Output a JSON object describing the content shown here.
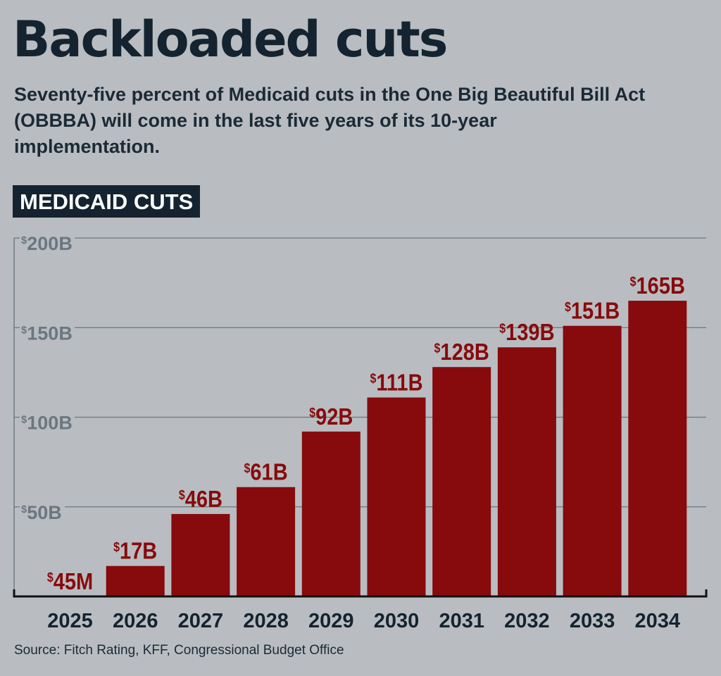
{
  "header": {
    "title": "Backloaded cuts",
    "subtitle": "Seventy-five percent of Medicaid cuts in the One Big Beautiful Bill Act (OBBBA) will come in the last five years of its 10-year implementation.",
    "chart_label": "MEDICAID CUTS"
  },
  "source": "Source: Fitch Rating, KFF, Congressional Budget Office",
  "colors": {
    "bar": "#870a0c",
    "label": "#870a0c",
    "axis_text": "#6b7780",
    "background": "#b9bdc1",
    "title": "#14232f"
  },
  "chart_data": {
    "type": "bar",
    "title": "MEDICAID CUTS",
    "categories": [
      "2025",
      "2026",
      "2027",
      "2028",
      "2029",
      "2030",
      "2031",
      "2032",
      "2033",
      "2034"
    ],
    "values": [
      0.045,
      17,
      46,
      61,
      92,
      111,
      128,
      139,
      151,
      165
    ],
    "value_unit": "billions USD",
    "data_labels": [
      "$45M",
      "$17B",
      "$46B",
      "$61B",
      "$92B",
      "$111B",
      "$128B",
      "$139B",
      "$151B",
      "$165B"
    ],
    "ylim": [
      0,
      200
    ],
    "yticks": [
      50,
      100,
      150,
      200
    ],
    "ytick_labels": [
      "$50B",
      "$100B",
      "$150B",
      "$200B"
    ],
    "grid": true,
    "xlabel": "",
    "ylabel": ""
  }
}
